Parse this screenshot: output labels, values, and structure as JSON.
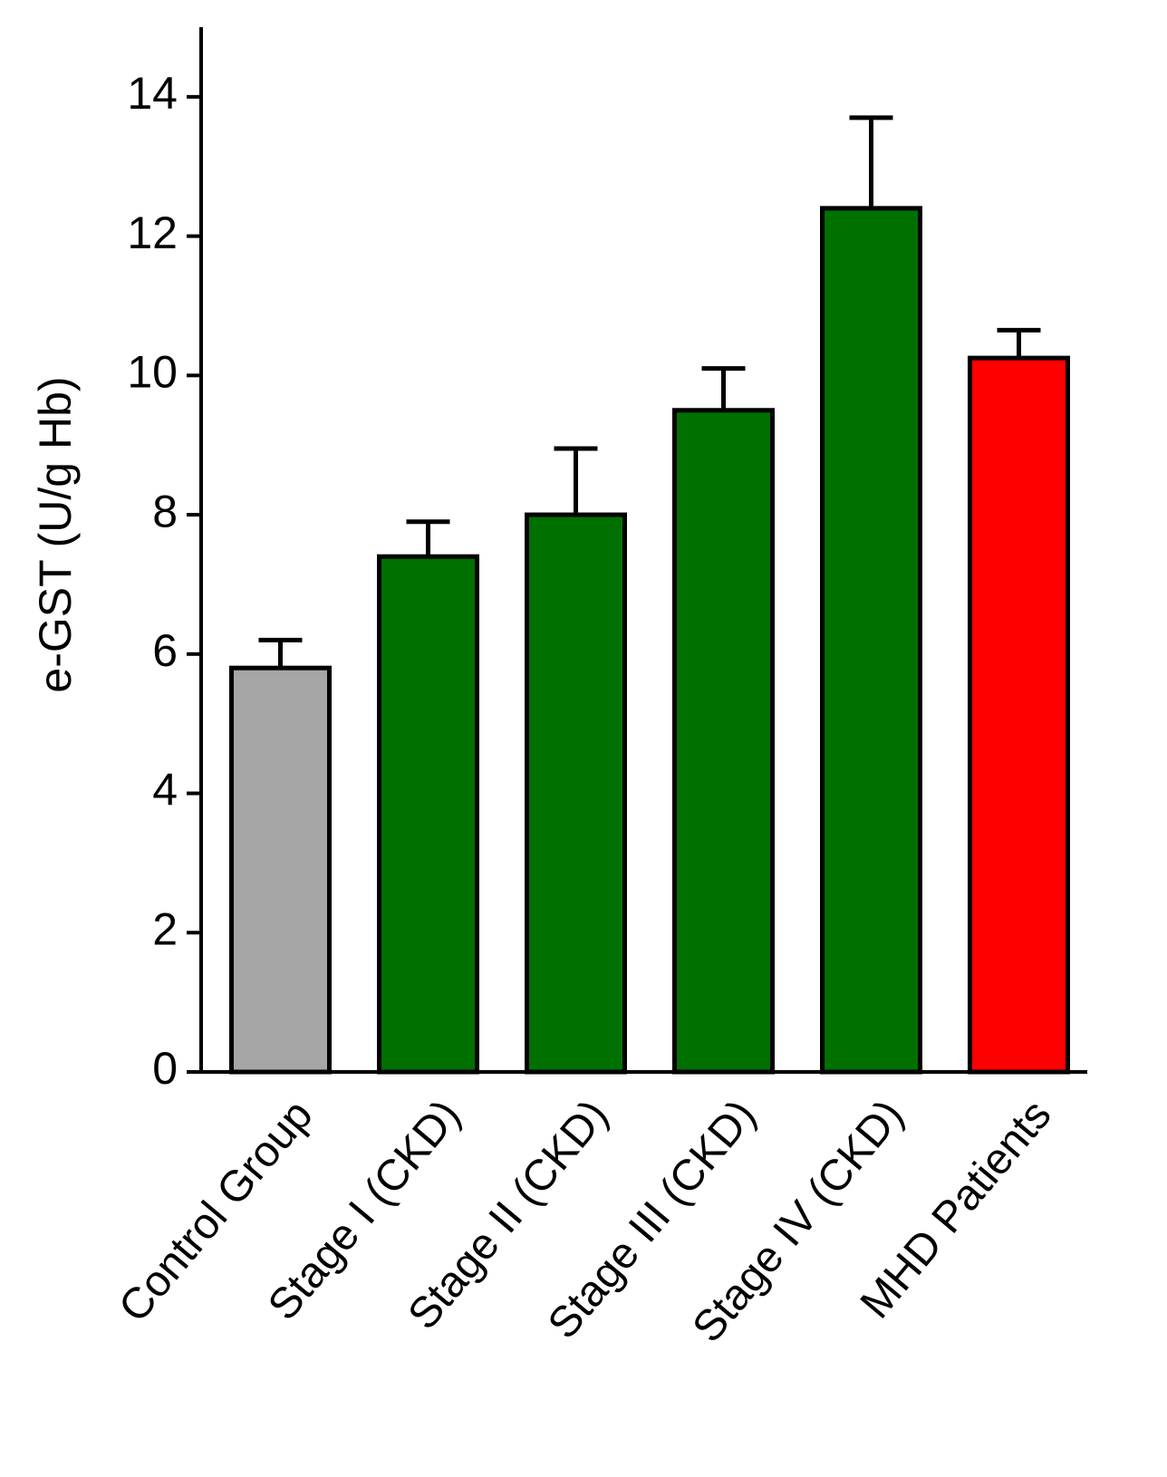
{
  "chart_data": {
    "type": "bar",
    "y_label": "e-GST  (U/g Hb)",
    "categories": [
      "Control Group",
      "Stage I (CKD)",
      "Stage II (CKD)",
      "Stage III (CKD)",
      "Stage IV (CKD)",
      "MHD Patients"
    ],
    "values": [
      5.8,
      7.4,
      8.0,
      9.5,
      12.4,
      10.25
    ],
    "errors": [
      0.4,
      0.5,
      0.95,
      0.6,
      1.3,
      0.4
    ],
    "colors": [
      "#a6a6a6",
      "#007000",
      "#007000",
      "#007000",
      "#007000",
      "#ff0000"
    ],
    "ylim": [
      0,
      15
    ],
    "yticks": [
      0,
      2,
      4,
      6,
      8,
      10,
      12,
      14
    ]
  }
}
